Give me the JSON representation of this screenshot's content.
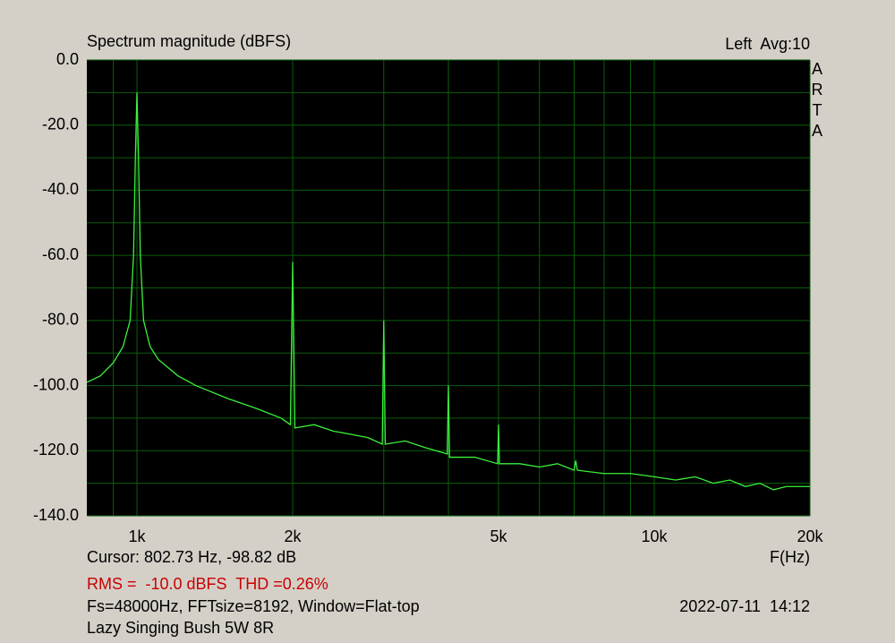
{
  "chart_data": {
    "type": "line",
    "title": "Spectrum magnitude (dBFS)",
    "channel_label": "Left  Avg:10",
    "watermark": "ARTA",
    "xlabel": "F(Hz)",
    "cursor": "Cursor: 802.73 Hz, -98.82 dB",
    "stats": "RMS =  -10.0 dBFS  THD =0.26%",
    "settings": "Fs=48000Hz, FFTsize=8192, Window=Flat-top",
    "timestamp": "2022-07-11  14:12",
    "device": "Lazy Singing Bush 5W 8R",
    "xscale": "log",
    "xlim": [
      800,
      20000
    ],
    "ylim": [
      -140,
      0
    ],
    "xticks": [
      {
        "value": 1000,
        "label": "1k"
      },
      {
        "value": 2000,
        "label": "2k"
      },
      {
        "value": 5000,
        "label": "5k"
      },
      {
        "value": 10000,
        "label": "10k"
      },
      {
        "value": 20000,
        "label": "20k"
      }
    ],
    "xgrid_minor": [
      900,
      3000,
      4000,
      6000,
      7000,
      8000,
      9000
    ],
    "yticks": [
      {
        "value": 0,
        "label": "0.0"
      },
      {
        "value": -20,
        "label": "-20.0"
      },
      {
        "value": -40,
        "label": "-40.0"
      },
      {
        "value": -60,
        "label": "-60.0"
      },
      {
        "value": -80,
        "label": "-80.0"
      },
      {
        "value": -100,
        "label": "-100.0"
      },
      {
        "value": -120,
        "label": "-120.0"
      },
      {
        "value": -140,
        "label": "-140.0"
      }
    ],
    "ygrid_minor": [
      -10,
      -30,
      -50,
      -70,
      -90,
      -110,
      -130
    ],
    "grid": true,
    "color": "#3cf03c",
    "x": [
      800,
      850,
      900,
      940,
      970,
      985,
      993,
      1000,
      1007,
      1015,
      1030,
      1060,
      1100,
      1200,
      1300,
      1500,
      1700,
      1900,
      1980,
      2000,
      2020,
      2200,
      2400,
      2600,
      2800,
      2980,
      3000,
      3020,
      3300,
      3600,
      3980,
      4000,
      4020,
      4500,
      4980,
      5000,
      5020,
      5500,
      6000,
      6500,
      7000,
      7050,
      7100,
      8000,
      9000,
      10000,
      11000,
      12000,
      13000,
      14000,
      15000,
      16000,
      17000,
      18000,
      19000,
      20000
    ],
    "values": [
      -99,
      -97,
      -93,
      -88,
      -80,
      -60,
      -30,
      -10,
      -30,
      -60,
      -80,
      -88,
      -92,
      -97,
      -100,
      -104,
      -107,
      -110,
      -112,
      -62,
      -113,
      -112,
      -114,
      -115,
      -116,
      -118,
      -80,
      -118,
      -117,
      -119,
      -121,
      -100,
      -122,
      -122,
      -124,
      -112,
      -124,
      -124,
      -125,
      -124,
      -126,
      -123,
      -126,
      -127,
      -127,
      -128,
      -129,
      -128,
      -130,
      -129,
      -131,
      -130,
      -132,
      -131,
      -131,
      -131
    ]
  }
}
